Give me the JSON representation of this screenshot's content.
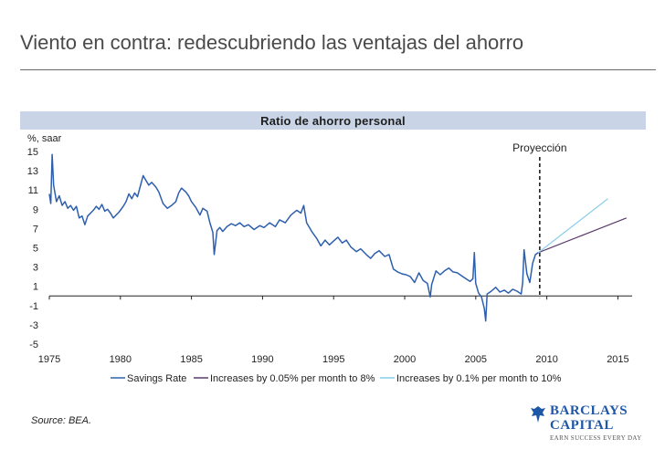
{
  "slide": {
    "title": "Viento en contra: redescubriendo las ventajas del ahorro",
    "source": "Source: BEA.",
    "logo": {
      "line1": "BARCLAYS",
      "line2": "CAPITAL",
      "tagline": "EARN SUCCESS EVERY DAY"
    }
  },
  "chart_data": {
    "type": "line",
    "title": "Ratio de ahorro personal",
    "ylabel": "%, saar",
    "xlim": [
      1975,
      2016
    ],
    "ylim": [
      -5,
      15
    ],
    "yticks": [
      15,
      13,
      11,
      9,
      7,
      5,
      3,
      1,
      -1,
      -3,
      -5
    ],
    "xticks": [
      1975,
      1980,
      1985,
      1990,
      1995,
      2000,
      2005,
      2010,
      2015
    ],
    "annotation": {
      "text": "Proyección",
      "x": 2009.5
    },
    "colors": {
      "savings": "#2e5fae",
      "proj1": "#5b3a6b",
      "proj2": "#86cde8"
    },
    "series": [
      {
        "name": "Savings Rate",
        "key": "savings",
        "points": [
          [
            1975.0,
            10.6
          ],
          [
            1975.1,
            9.6
          ],
          [
            1975.2,
            14.7
          ],
          [
            1975.3,
            11.5
          ],
          [
            1975.5,
            9.8
          ],
          [
            1975.7,
            10.4
          ],
          [
            1975.9,
            9.4
          ],
          [
            1976.1,
            9.8
          ],
          [
            1976.3,
            9.1
          ],
          [
            1976.5,
            9.4
          ],
          [
            1976.7,
            8.9
          ],
          [
            1976.9,
            9.3
          ],
          [
            1977.1,
            8.1
          ],
          [
            1977.3,
            8.3
          ],
          [
            1977.5,
            7.4
          ],
          [
            1977.7,
            8.3
          ],
          [
            1977.9,
            8.6
          ],
          [
            1978.1,
            8.9
          ],
          [
            1978.3,
            9.3
          ],
          [
            1978.5,
            9.0
          ],
          [
            1978.7,
            9.5
          ],
          [
            1978.9,
            8.8
          ],
          [
            1979.1,
            9.0
          ],
          [
            1979.3,
            8.6
          ],
          [
            1979.5,
            8.1
          ],
          [
            1979.7,
            8.4
          ],
          [
            1979.9,
            8.7
          ],
          [
            1980.2,
            9.3
          ],
          [
            1980.4,
            9.8
          ],
          [
            1980.6,
            10.6
          ],
          [
            1980.8,
            10.1
          ],
          [
            1981.0,
            10.7
          ],
          [
            1981.2,
            10.3
          ],
          [
            1981.4,
            11.4
          ],
          [
            1981.6,
            12.5
          ],
          [
            1981.8,
            12.0
          ],
          [
            1982.0,
            11.5
          ],
          [
            1982.2,
            11.8
          ],
          [
            1982.5,
            11.3
          ],
          [
            1982.7,
            10.8
          ],
          [
            1983.0,
            9.6
          ],
          [
            1983.3,
            9.1
          ],
          [
            1983.6,
            9.4
          ],
          [
            1983.9,
            9.8
          ],
          [
            1984.1,
            10.7
          ],
          [
            1984.3,
            11.2
          ],
          [
            1984.6,
            10.8
          ],
          [
            1984.8,
            10.4
          ],
          [
            1985.0,
            9.8
          ],
          [
            1985.3,
            9.2
          ],
          [
            1985.6,
            8.4
          ],
          [
            1985.8,
            9.1
          ],
          [
            1986.1,
            8.8
          ],
          [
            1986.3,
            7.6
          ],
          [
            1986.5,
            6.6
          ],
          [
            1986.6,
            4.3
          ],
          [
            1986.8,
            6.8
          ],
          [
            1987.0,
            7.1
          ],
          [
            1987.2,
            6.7
          ],
          [
            1987.5,
            7.2
          ],
          [
            1987.8,
            7.5
          ],
          [
            1988.1,
            7.3
          ],
          [
            1988.4,
            7.6
          ],
          [
            1988.7,
            7.2
          ],
          [
            1989.0,
            7.4
          ],
          [
            1989.4,
            6.9
          ],
          [
            1989.8,
            7.3
          ],
          [
            1990.1,
            7.1
          ],
          [
            1990.5,
            7.6
          ],
          [
            1990.9,
            7.2
          ],
          [
            1991.2,
            7.9
          ],
          [
            1991.6,
            7.6
          ],
          [
            1992.0,
            8.4
          ],
          [
            1992.4,
            8.9
          ],
          [
            1992.7,
            8.6
          ],
          [
            1992.9,
            9.4
          ],
          [
            1993.1,
            7.6
          ],
          [
            1993.5,
            6.6
          ],
          [
            1993.8,
            6.0
          ],
          [
            1994.1,
            5.2
          ],
          [
            1994.4,
            5.8
          ],
          [
            1994.7,
            5.3
          ],
          [
            1995.0,
            5.7
          ],
          [
            1995.3,
            6.1
          ],
          [
            1995.6,
            5.5
          ],
          [
            1995.9,
            5.8
          ],
          [
            1996.2,
            5.1
          ],
          [
            1996.6,
            4.6
          ],
          [
            1996.9,
            4.9
          ],
          [
            1997.3,
            4.3
          ],
          [
            1997.6,
            3.9
          ],
          [
            1997.9,
            4.4
          ],
          [
            1998.2,
            4.7
          ],
          [
            1998.6,
            4.1
          ],
          [
            1998.9,
            4.3
          ],
          [
            1999.2,
            2.8
          ],
          [
            1999.5,
            2.5
          ],
          [
            1999.8,
            2.3
          ],
          [
            2000.1,
            2.2
          ],
          [
            2000.4,
            2.0
          ],
          [
            2000.7,
            1.4
          ],
          [
            2001.0,
            2.4
          ],
          [
            2001.3,
            1.6
          ],
          [
            2001.6,
            1.3
          ],
          [
            2001.8,
            -0.1
          ],
          [
            2001.9,
            1.2
          ],
          [
            2002.2,
            2.6
          ],
          [
            2002.5,
            2.2
          ],
          [
            2002.8,
            2.6
          ],
          [
            2003.1,
            2.9
          ],
          [
            2003.4,
            2.5
          ],
          [
            2003.7,
            2.4
          ],
          [
            2004.0,
            2.1
          ],
          [
            2004.3,
            1.8
          ],
          [
            2004.6,
            1.5
          ],
          [
            2004.8,
            1.8
          ],
          [
            2004.9,
            4.5
          ],
          [
            2005.0,
            1.3
          ],
          [
            2005.2,
            0.3
          ],
          [
            2005.4,
            -0.1
          ],
          [
            2005.6,
            -1.3
          ],
          [
            2005.7,
            -2.6
          ],
          [
            2005.8,
            0.2
          ],
          [
            2006.1,
            0.5
          ],
          [
            2006.4,
            0.9
          ],
          [
            2006.7,
            0.4
          ],
          [
            2007.0,
            0.6
          ],
          [
            2007.3,
            0.3
          ],
          [
            2007.6,
            0.7
          ],
          [
            2007.9,
            0.5
          ],
          [
            2008.2,
            0.2
          ],
          [
            2008.3,
            1.4
          ],
          [
            2008.4,
            4.8
          ],
          [
            2008.6,
            2.3
          ],
          [
            2008.8,
            1.4
          ],
          [
            2009.0,
            3.4
          ],
          [
            2009.2,
            4.3
          ],
          [
            2009.4,
            4.5
          ]
        ]
      },
      {
        "name": "Increases by 0.05% per month to 8%",
        "key": "proj1",
        "points": [
          [
            2009.4,
            4.5
          ],
          [
            2015.6,
            8.1
          ]
        ]
      },
      {
        "name": "Increases by 0.1% per month to 10%",
        "key": "proj2",
        "points": [
          [
            2009.4,
            4.5
          ],
          [
            2014.3,
            10.1
          ]
        ]
      }
    ]
  }
}
